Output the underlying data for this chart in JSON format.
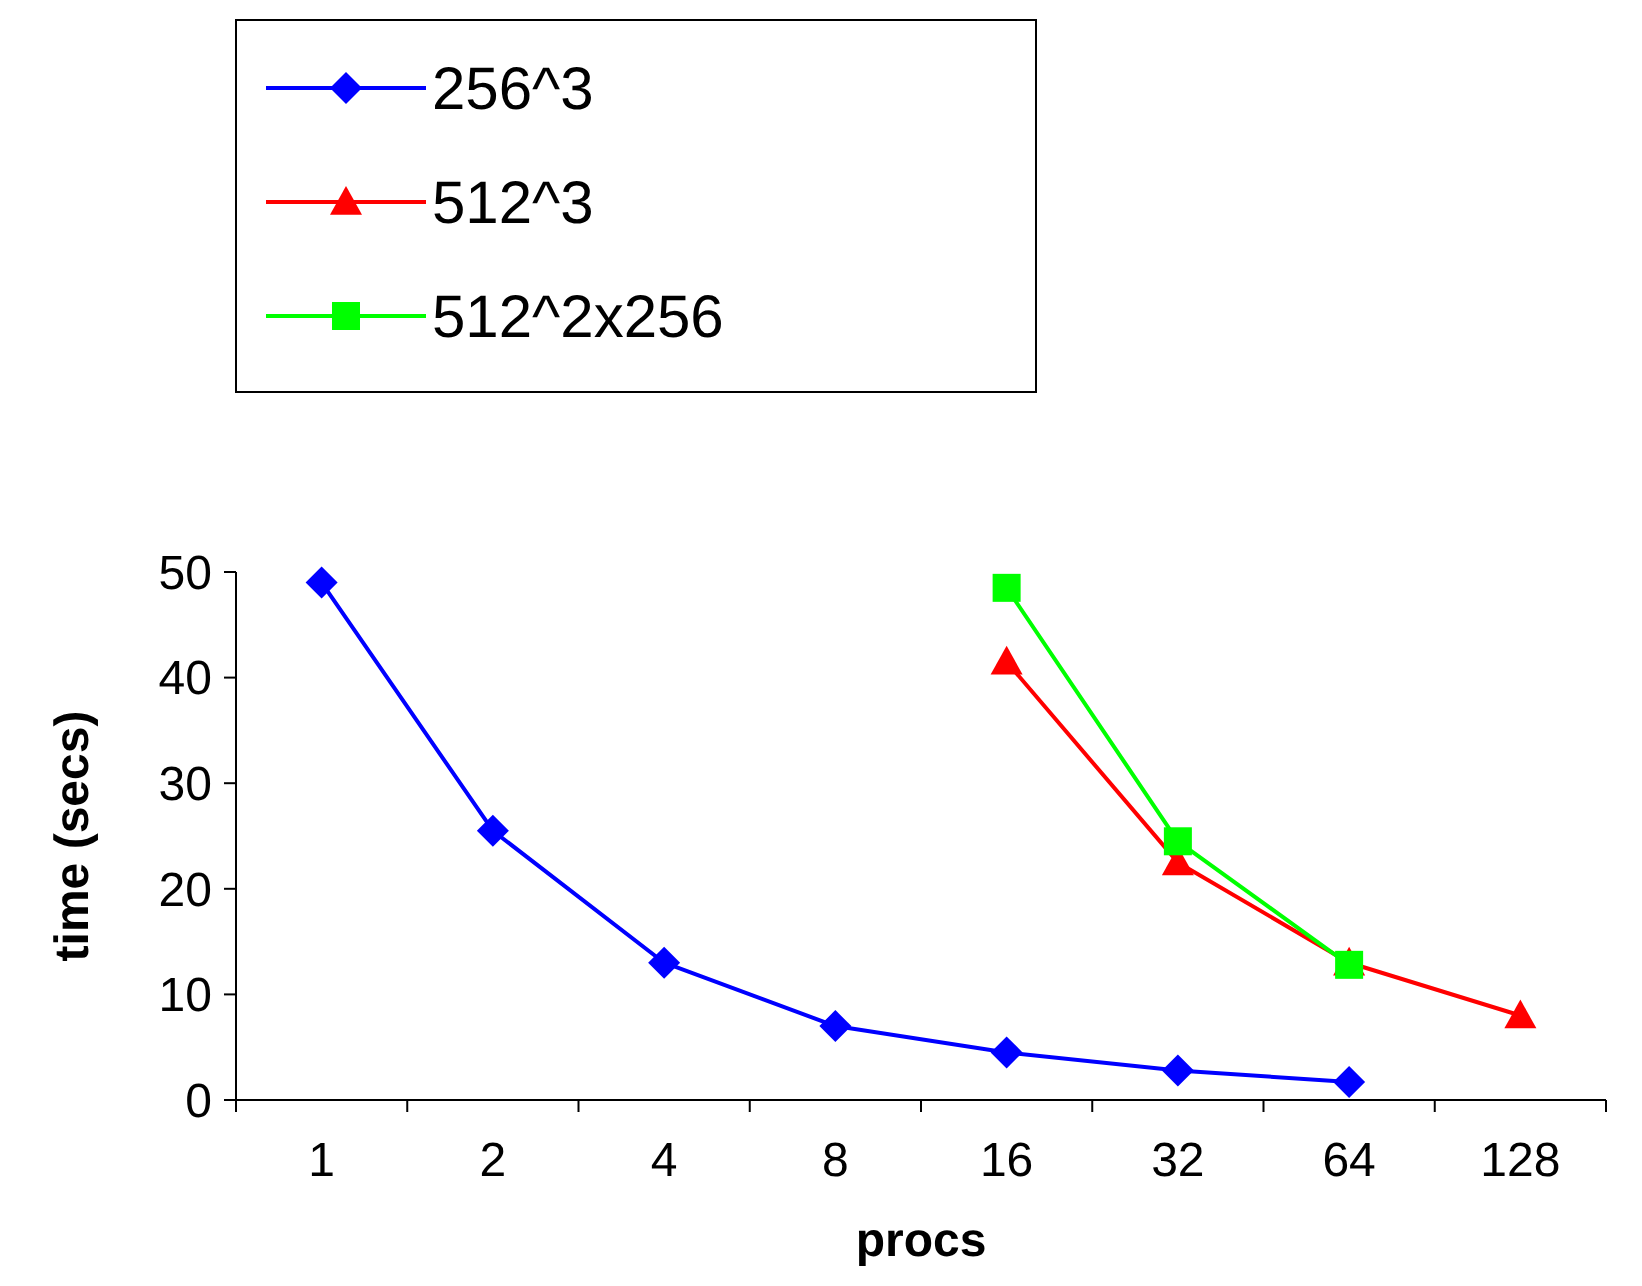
{
  "chart_data": {
    "type": "line",
    "xlabel": "procs",
    "ylabel": "time (secs)",
    "categories": [
      "1",
      "2",
      "4",
      "8",
      "16",
      "32",
      "64",
      "128"
    ],
    "ylim": [
      0,
      50
    ],
    "yticks": [
      0,
      10,
      20,
      30,
      40,
      50
    ],
    "legend": "top",
    "series": [
      {
        "name": "256^3",
        "color": "#0000ff",
        "marker": "diamond",
        "values": [
          49,
          25.5,
          13,
          7,
          4.5,
          2.8,
          1.7,
          null
        ]
      },
      {
        "name": "512^3",
        "color": "#ff0000",
        "marker": "triangle",
        "values": [
          null,
          null,
          null,
          null,
          41.5,
          22.5,
          13,
          8
        ]
      },
      {
        "name": "512^2x256",
        "color": "#00ff00",
        "marker": "square",
        "values": [
          null,
          null,
          null,
          null,
          48.5,
          24.5,
          12.8,
          null
        ]
      }
    ]
  }
}
